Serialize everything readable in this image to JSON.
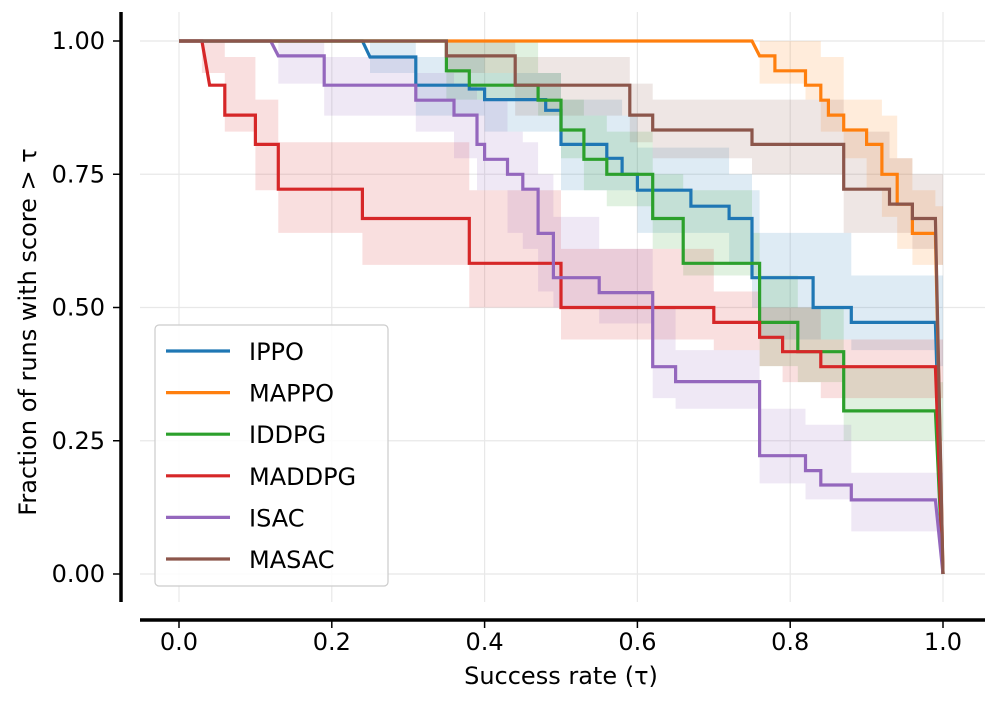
{
  "chart_data": {
    "type": "line",
    "title": "",
    "xlabel": "Success rate (τ)",
    "ylabel": "Fraction of runs with score > τ",
    "xlim": [
      -0.05,
      1.05
    ],
    "ylim": [
      -0.06,
      1.04
    ],
    "xticks": [
      0.0,
      0.2,
      0.4,
      0.6,
      0.8,
      1.0
    ],
    "xtick_labels": [
      "0.0",
      "0.2",
      "0.4",
      "0.6",
      "0.8",
      "1.0"
    ],
    "yticks": [
      0.0,
      0.25,
      0.5,
      0.75,
      1.0
    ],
    "ytick_labels": [
      "0.00",
      "0.25",
      "0.50",
      "0.75",
      "1.00"
    ],
    "grid": true,
    "legend_position": "lower-left",
    "series": [
      {
        "name": "IPPO",
        "color": "#1f77b4",
        "points": [
          [
            0.0,
            1.0
          ],
          [
            0.24,
            1.0
          ],
          [
            0.25,
            0.97
          ],
          [
            0.31,
            0.97
          ],
          [
            0.31,
            0.917
          ],
          [
            0.38,
            0.917
          ],
          [
            0.38,
            0.91
          ],
          [
            0.4,
            0.91
          ],
          [
            0.4,
            0.89
          ],
          [
            0.48,
            0.89
          ],
          [
            0.48,
            0.87
          ],
          [
            0.5,
            0.87
          ],
          [
            0.5,
            0.806
          ],
          [
            0.56,
            0.806
          ],
          [
            0.56,
            0.78
          ],
          [
            0.58,
            0.78
          ],
          [
            0.58,
            0.75
          ],
          [
            0.6,
            0.75
          ],
          [
            0.6,
            0.72
          ],
          [
            0.67,
            0.72
          ],
          [
            0.67,
            0.69
          ],
          [
            0.72,
            0.69
          ],
          [
            0.72,
            0.667
          ],
          [
            0.75,
            0.667
          ],
          [
            0.75,
            0.556
          ],
          [
            0.83,
            0.556
          ],
          [
            0.83,
            0.5
          ],
          [
            0.88,
            0.5
          ],
          [
            0.88,
            0.472
          ],
          [
            0.99,
            0.472
          ],
          [
            1.0,
            0.0
          ]
        ],
        "band": [
          [
            0.0,
            1.0,
            1.0
          ],
          [
            0.24,
            1.0,
            1.0
          ],
          [
            0.25,
            0.94,
            1.0
          ],
          [
            0.31,
            0.94,
            1.0
          ],
          [
            0.31,
            0.86,
            0.97
          ],
          [
            0.4,
            0.83,
            0.94
          ],
          [
            0.48,
            0.83,
            0.94
          ],
          [
            0.5,
            0.72,
            0.89
          ],
          [
            0.58,
            0.72,
            0.86
          ],
          [
            0.6,
            0.64,
            0.8
          ],
          [
            0.67,
            0.64,
            0.8
          ],
          [
            0.72,
            0.58,
            0.75
          ],
          [
            0.75,
            0.5,
            0.72
          ],
          [
            0.76,
            0.44,
            0.64
          ],
          [
            0.88,
            0.42,
            0.56
          ],
          [
            0.99,
            0.39,
            0.56
          ],
          [
            1.0,
            0.0,
            0.0
          ]
        ]
      },
      {
        "name": "MAPPO",
        "color": "#ff7f0e",
        "points": [
          [
            0.0,
            1.0
          ],
          [
            0.75,
            1.0
          ],
          [
            0.76,
            0.972
          ],
          [
            0.78,
            0.972
          ],
          [
            0.78,
            0.944
          ],
          [
            0.8,
            0.944
          ],
          [
            0.8,
            0.944
          ],
          [
            0.82,
            0.944
          ],
          [
            0.82,
            0.917
          ],
          [
            0.84,
            0.917
          ],
          [
            0.84,
            0.889
          ],
          [
            0.85,
            0.889
          ],
          [
            0.85,
            0.861
          ],
          [
            0.87,
            0.861
          ],
          [
            0.87,
            0.833
          ],
          [
            0.9,
            0.833
          ],
          [
            0.9,
            0.806
          ],
          [
            0.92,
            0.806
          ],
          [
            0.92,
            0.75
          ],
          [
            0.94,
            0.75
          ],
          [
            0.94,
            0.694
          ],
          [
            0.96,
            0.694
          ],
          [
            0.96,
            0.639
          ],
          [
            0.99,
            0.639
          ],
          [
            1.0,
            0.0
          ]
        ],
        "band": [
          [
            0.0,
            1.0,
            1.0
          ],
          [
            0.75,
            1.0,
            1.0
          ],
          [
            0.76,
            0.92,
            1.0
          ],
          [
            0.82,
            0.89,
            1.0
          ],
          [
            0.84,
            0.83,
            0.97
          ],
          [
            0.87,
            0.78,
            0.89
          ],
          [
            0.9,
            0.72,
            0.89
          ],
          [
            0.92,
            0.67,
            0.86
          ],
          [
            0.94,
            0.61,
            0.78
          ],
          [
            0.96,
            0.58,
            0.72
          ],
          [
            0.99,
            0.58,
            0.69
          ],
          [
            1.0,
            0.0,
            0.0
          ]
        ]
      },
      {
        "name": "IDDPG",
        "color": "#2ca02c",
        "points": [
          [
            0.0,
            1.0
          ],
          [
            0.35,
            1.0
          ],
          [
            0.35,
            0.944
          ],
          [
            0.38,
            0.944
          ],
          [
            0.38,
            0.917
          ],
          [
            0.47,
            0.917
          ],
          [
            0.47,
            0.889
          ],
          [
            0.5,
            0.889
          ],
          [
            0.5,
            0.833
          ],
          [
            0.53,
            0.833
          ],
          [
            0.53,
            0.778
          ],
          [
            0.56,
            0.778
          ],
          [
            0.56,
            0.75
          ],
          [
            0.62,
            0.75
          ],
          [
            0.62,
            0.667
          ],
          [
            0.66,
            0.667
          ],
          [
            0.66,
            0.583
          ],
          [
            0.75,
            0.583
          ],
          [
            0.75,
            0.583
          ],
          [
            0.76,
            0.583
          ],
          [
            0.76,
            0.472
          ],
          [
            0.81,
            0.472
          ],
          [
            0.81,
            0.417
          ],
          [
            0.87,
            0.417
          ],
          [
            0.87,
            0.306
          ],
          [
            0.99,
            0.306
          ],
          [
            1.0,
            0.0
          ]
        ],
        "band": [
          [
            0.0,
            1.0,
            1.0
          ],
          [
            0.35,
            0.89,
            1.0
          ],
          [
            0.47,
            0.86,
            0.94
          ],
          [
            0.5,
            0.78,
            0.89
          ],
          [
            0.53,
            0.72,
            0.86
          ],
          [
            0.56,
            0.69,
            0.83
          ],
          [
            0.62,
            0.61,
            0.75
          ],
          [
            0.66,
            0.56,
            0.72
          ],
          [
            0.75,
            0.56,
            0.64
          ],
          [
            0.76,
            0.39,
            0.56
          ],
          [
            0.81,
            0.36,
            0.5
          ],
          [
            0.87,
            0.25,
            0.39
          ],
          [
            0.99,
            0.25,
            0.36
          ],
          [
            1.0,
            0.0,
            0.0
          ]
        ]
      },
      {
        "name": "MADDPG",
        "color": "#d62728",
        "points": [
          [
            0.0,
            1.0
          ],
          [
            0.03,
            1.0
          ],
          [
            0.04,
            0.917
          ],
          [
            0.06,
            0.917
          ],
          [
            0.06,
            0.861
          ],
          [
            0.1,
            0.861
          ],
          [
            0.1,
            0.806
          ],
          [
            0.13,
            0.806
          ],
          [
            0.13,
            0.722
          ],
          [
            0.24,
            0.722
          ],
          [
            0.24,
            0.667
          ],
          [
            0.38,
            0.667
          ],
          [
            0.38,
            0.583
          ],
          [
            0.5,
            0.583
          ],
          [
            0.5,
            0.5
          ],
          [
            0.7,
            0.5
          ],
          [
            0.7,
            0.472
          ],
          [
            0.75,
            0.472
          ],
          [
            0.75,
            0.472
          ],
          [
            0.76,
            0.472
          ],
          [
            0.76,
            0.444
          ],
          [
            0.79,
            0.444
          ],
          [
            0.79,
            0.417
          ],
          [
            0.84,
            0.417
          ],
          [
            0.84,
            0.389
          ],
          [
            0.99,
            0.389
          ],
          [
            1.0,
            0.0
          ]
        ],
        "band": [
          [
            0.0,
            1.0,
            1.0
          ],
          [
            0.03,
            0.94,
            1.0
          ],
          [
            0.06,
            0.83,
            0.97
          ],
          [
            0.1,
            0.72,
            0.89
          ],
          [
            0.13,
            0.64,
            0.81
          ],
          [
            0.24,
            0.58,
            0.81
          ],
          [
            0.38,
            0.5,
            0.72
          ],
          [
            0.5,
            0.44,
            0.61
          ],
          [
            0.7,
            0.42,
            0.53
          ],
          [
            0.76,
            0.39,
            0.5
          ],
          [
            0.79,
            0.36,
            0.5
          ],
          [
            0.84,
            0.33,
            0.44
          ],
          [
            0.99,
            0.33,
            0.44
          ],
          [
            1.0,
            0.0,
            0.0
          ]
        ]
      },
      {
        "name": "ISAC",
        "color": "#9467bd",
        "points": [
          [
            0.0,
            1.0
          ],
          [
            0.12,
            1.0
          ],
          [
            0.13,
            0.972
          ],
          [
            0.19,
            0.972
          ],
          [
            0.19,
            0.917
          ],
          [
            0.31,
            0.917
          ],
          [
            0.31,
            0.889
          ],
          [
            0.36,
            0.889
          ],
          [
            0.36,
            0.861
          ],
          [
            0.39,
            0.861
          ],
          [
            0.39,
            0.806
          ],
          [
            0.4,
            0.806
          ],
          [
            0.4,
            0.778
          ],
          [
            0.43,
            0.778
          ],
          [
            0.43,
            0.75
          ],
          [
            0.45,
            0.75
          ],
          [
            0.45,
            0.722
          ],
          [
            0.47,
            0.722
          ],
          [
            0.47,
            0.639
          ],
          [
            0.49,
            0.639
          ],
          [
            0.49,
            0.556
          ],
          [
            0.55,
            0.556
          ],
          [
            0.55,
            0.528
          ],
          [
            0.62,
            0.528
          ],
          [
            0.62,
            0.389
          ],
          [
            0.65,
            0.389
          ],
          [
            0.65,
            0.361
          ],
          [
            0.75,
            0.361
          ],
          [
            0.75,
            0.361
          ],
          [
            0.76,
            0.361
          ],
          [
            0.76,
            0.222
          ],
          [
            0.82,
            0.222
          ],
          [
            0.82,
            0.194
          ],
          [
            0.84,
            0.194
          ],
          [
            0.84,
            0.167
          ],
          [
            0.88,
            0.167
          ],
          [
            0.88,
            0.139
          ],
          [
            0.99,
            0.139
          ],
          [
            1.0,
            0.0
          ]
        ],
        "band": [
          [
            0.0,
            1.0,
            1.0
          ],
          [
            0.13,
            0.92,
            1.0
          ],
          [
            0.19,
            0.86,
            0.97
          ],
          [
            0.31,
            0.83,
            0.94
          ],
          [
            0.36,
            0.78,
            0.92
          ],
          [
            0.39,
            0.72,
            0.89
          ],
          [
            0.43,
            0.64,
            0.83
          ],
          [
            0.45,
            0.61,
            0.81
          ],
          [
            0.47,
            0.53,
            0.75
          ],
          [
            0.49,
            0.5,
            0.67
          ],
          [
            0.55,
            0.47,
            0.61
          ],
          [
            0.62,
            0.33,
            0.5
          ],
          [
            0.65,
            0.31,
            0.42
          ],
          [
            0.76,
            0.17,
            0.31
          ],
          [
            0.82,
            0.14,
            0.28
          ],
          [
            0.88,
            0.08,
            0.19
          ],
          [
            0.99,
            0.08,
            0.19
          ],
          [
            1.0,
            0.0,
            0.0
          ]
        ]
      },
      {
        "name": "MASAC",
        "color": "#8c564b",
        "points": [
          [
            0.0,
            1.0
          ],
          [
            0.35,
            1.0
          ],
          [
            0.35,
            0.972
          ],
          [
            0.44,
            0.972
          ],
          [
            0.44,
            0.917
          ],
          [
            0.59,
            0.917
          ],
          [
            0.59,
            0.861
          ],
          [
            0.62,
            0.861
          ],
          [
            0.62,
            0.833
          ],
          [
            0.75,
            0.833
          ],
          [
            0.75,
            0.806
          ],
          [
            0.87,
            0.806
          ],
          [
            0.87,
            0.722
          ],
          [
            0.93,
            0.722
          ],
          [
            0.93,
            0.694
          ],
          [
            0.96,
            0.694
          ],
          [
            0.96,
            0.667
          ],
          [
            0.99,
            0.667
          ],
          [
            1.0,
            0.0
          ]
        ],
        "band": [
          [
            0.0,
            1.0,
            1.0
          ],
          [
            0.35,
            0.94,
            1.0
          ],
          [
            0.44,
            0.86,
            0.97
          ],
          [
            0.59,
            0.81,
            0.92
          ],
          [
            0.62,
            0.78,
            0.89
          ],
          [
            0.75,
            0.75,
            0.89
          ],
          [
            0.87,
            0.64,
            0.83
          ],
          [
            0.93,
            0.64,
            0.78
          ],
          [
            0.96,
            0.61,
            0.75
          ],
          [
            0.99,
            0.58,
            0.75
          ],
          [
            1.0,
            0.0,
            0.0
          ]
        ]
      }
    ]
  }
}
